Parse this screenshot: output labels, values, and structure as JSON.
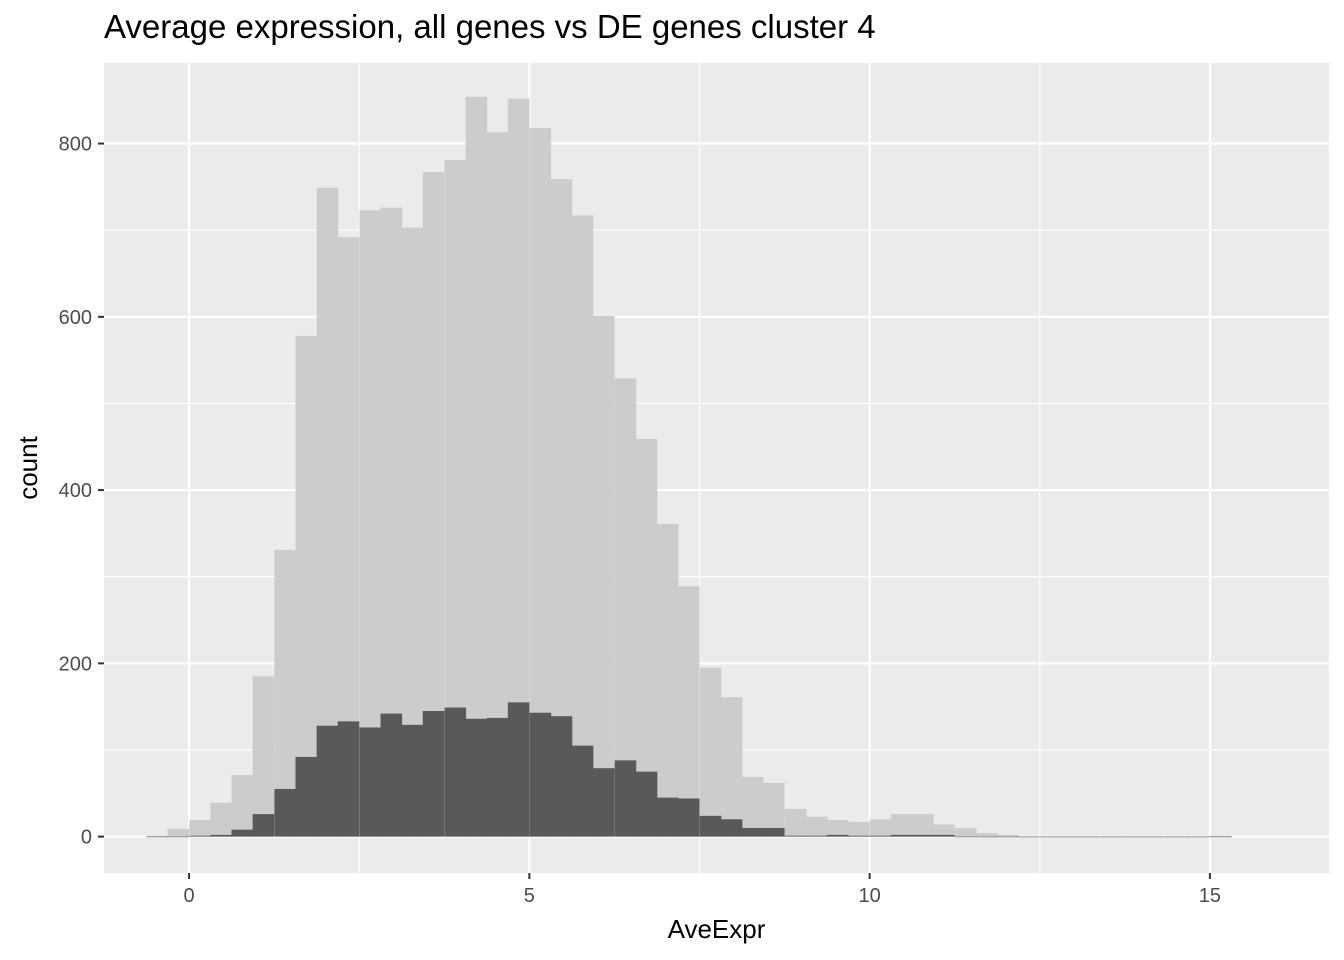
{
  "chart_data": {
    "type": "bar",
    "title": "Average expression, all genes vs DE genes cluster 4",
    "xlabel": "AveExpr",
    "ylabel": "count",
    "xlim": [
      -1.25,
      16.75
    ],
    "ylim": [
      -42,
      893
    ],
    "x_ticks": [
      0,
      5,
      10,
      15
    ],
    "y_ticks": [
      0,
      200,
      400,
      600,
      800
    ],
    "x_tick_labels": [
      "0",
      "5",
      "10",
      "15"
    ],
    "y_tick_labels": [
      "0",
      "200",
      "400",
      "600",
      "800"
    ],
    "grid": true,
    "legend": "none",
    "bin_width": 0.3125,
    "colors": {
      "panel_background": "#ebebeb",
      "grid": "#ffffff",
      "all_genes": "#cccccc",
      "de_genes": "#595959"
    },
    "x": [
      -0.47,
      -0.16,
      0.16,
      0.47,
      0.78,
      1.09,
      1.41,
      1.72,
      2.03,
      2.34,
      2.66,
      2.97,
      3.28,
      3.59,
      3.91,
      4.22,
      4.53,
      4.84,
      5.16,
      5.47,
      5.78,
      6.09,
      6.41,
      6.72,
      7.03,
      7.34,
      7.66,
      7.97,
      8.28,
      8.59,
      8.91,
      9.22,
      9.53,
      9.84,
      10.16,
      10.47,
      10.78,
      11.09,
      11.41,
      11.72,
      12.03,
      12.34,
      12.66,
      12.97,
      13.28,
      13.59,
      13.91,
      14.22,
      14.53,
      14.84,
      15.16
    ],
    "series": [
      {
        "values": [
          1,
          9,
          19,
          39,
          71,
          185,
          331,
          578,
          749,
          692,
          723,
          726,
          703,
          767,
          781,
          854,
          813,
          852,
          818,
          759,
          717,
          601,
          529,
          459,
          361,
          289,
          195,
          161,
          69,
          62,
          32,
          23,
          19,
          17,
          20,
          26,
          26,
          14,
          10,
          4,
          2,
          0,
          0,
          0,
          0,
          0,
          0,
          0,
          0,
          0,
          1
        ]
      },
      {
        "values": [
          0,
          0,
          1,
          2,
          8,
          26,
          55,
          92,
          128,
          133,
          126,
          142,
          129,
          145,
          149,
          136,
          137,
          155,
          143,
          139,
          105,
          79,
          88,
          75,
          45,
          44,
          24,
          20,
          10,
          10,
          1,
          1,
          2,
          1,
          1,
          2,
          2,
          2,
          0,
          0,
          0,
          0,
          0,
          0,
          0,
          0,
          0,
          0,
          0,
          0,
          0
        ]
      }
    ]
  }
}
